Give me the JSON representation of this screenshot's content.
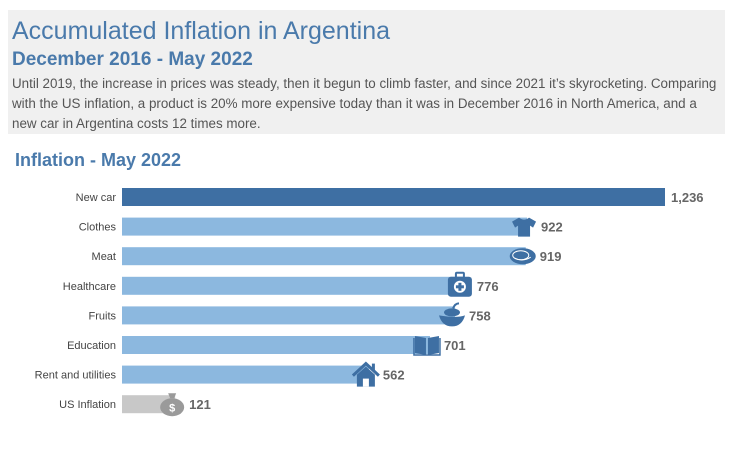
{
  "header": {
    "title": "Accumulated Inflation in Argentina",
    "subtitle": "December 2016 - May 2022",
    "description": "Until 2019, the increase in prices was steady, then it begun to climb faster, and since 2021 it’s skyrocketing. Comparing with the US inflation, a product is 20% more expensive today than it was in December 2016 in North America, and a new car in Argentina costs 12 times more."
  },
  "chart_data": {
    "type": "bar",
    "orientation": "horizontal",
    "title": "Inflation - May 2022",
    "xlabel": "",
    "ylabel": "",
    "xlim": [
      0,
      1236
    ],
    "grid": false,
    "categories": [
      "New car",
      "Clothes",
      "Meat",
      "Healthcare",
      "Fruits",
      "Education",
      "Rent and utilities",
      "US Inflation"
    ],
    "values": [
      1236,
      922,
      919,
      776,
      758,
      701,
      562,
      121
    ],
    "value_labels": [
      "1,236",
      "922",
      "919",
      "776",
      "758",
      "701",
      "562",
      "121"
    ],
    "icons": [
      "car-icon",
      "tshirt-icon",
      "meat-icon",
      "medical-kit-icon",
      "fruit-icon",
      "book-icon",
      "house-icon",
      "money-bag-icon"
    ],
    "colors": [
      "#3e6fa3",
      "#8cb8df",
      "#8cb8df",
      "#8cb8df",
      "#8cb8df",
      "#8cb8df",
      "#8cb8df",
      "#c8c8c8"
    ],
    "icon_colors": [
      "#3e6fa3",
      "#3e6fa3",
      "#3e6fa3",
      "#3e6fa3",
      "#3e6fa3",
      "#3e6fa3",
      "#3e6fa3",
      "#9a9a9a"
    ]
  }
}
